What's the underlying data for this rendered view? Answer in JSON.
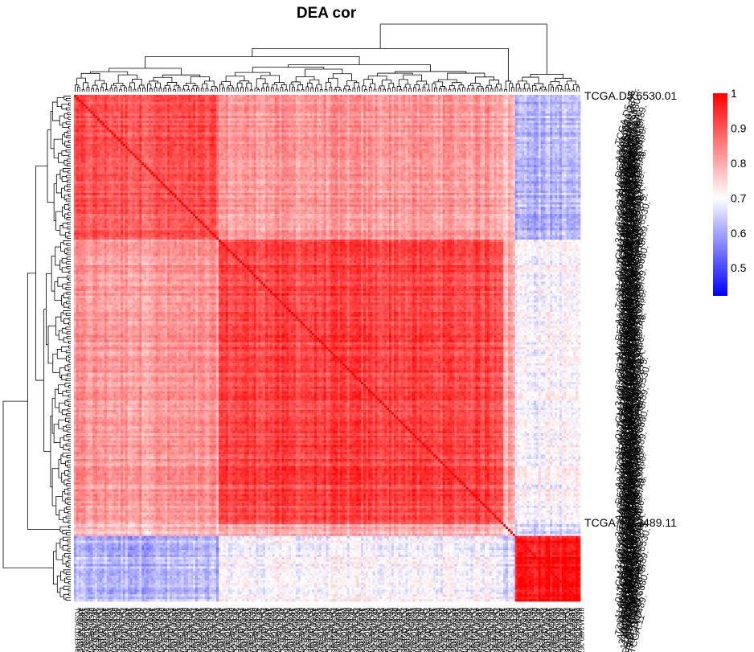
{
  "chart_data": {
    "type": "heatmap",
    "title": "DEA cor",
    "n_samples": 217,
    "cluster_sizes": [
      62,
      122,
      5,
      28
    ],
    "within_cluster_cor": [
      0.9,
      0.92,
      0.75,
      0.98
    ],
    "between_cluster_cor": [
      [
        0.9,
        0.82,
        0.78,
        0.62
      ],
      [
        0.82,
        0.92,
        0.8,
        0.7
      ],
      [
        0.78,
        0.8,
        0.75,
        0.66
      ],
      [
        0.62,
        0.7,
        0.66,
        0.98
      ]
    ],
    "row_label_first": "TCGA.D5.6530.01",
    "row_label_last": "TCGA.AA.3489.11",
    "color_scale": {
      "min": 0.42,
      "max": 1,
      "low_color": "#0000ff",
      "mid_color": "#ffffff",
      "mid_value": 0.7,
      "high_color": "#ff0000",
      "ticks": [
        "1",
        "0.9",
        "0.8",
        "0.7",
        "0.6",
        "0.5"
      ]
    },
    "dendrogram": "both",
    "legend_placement": "top-right"
  }
}
